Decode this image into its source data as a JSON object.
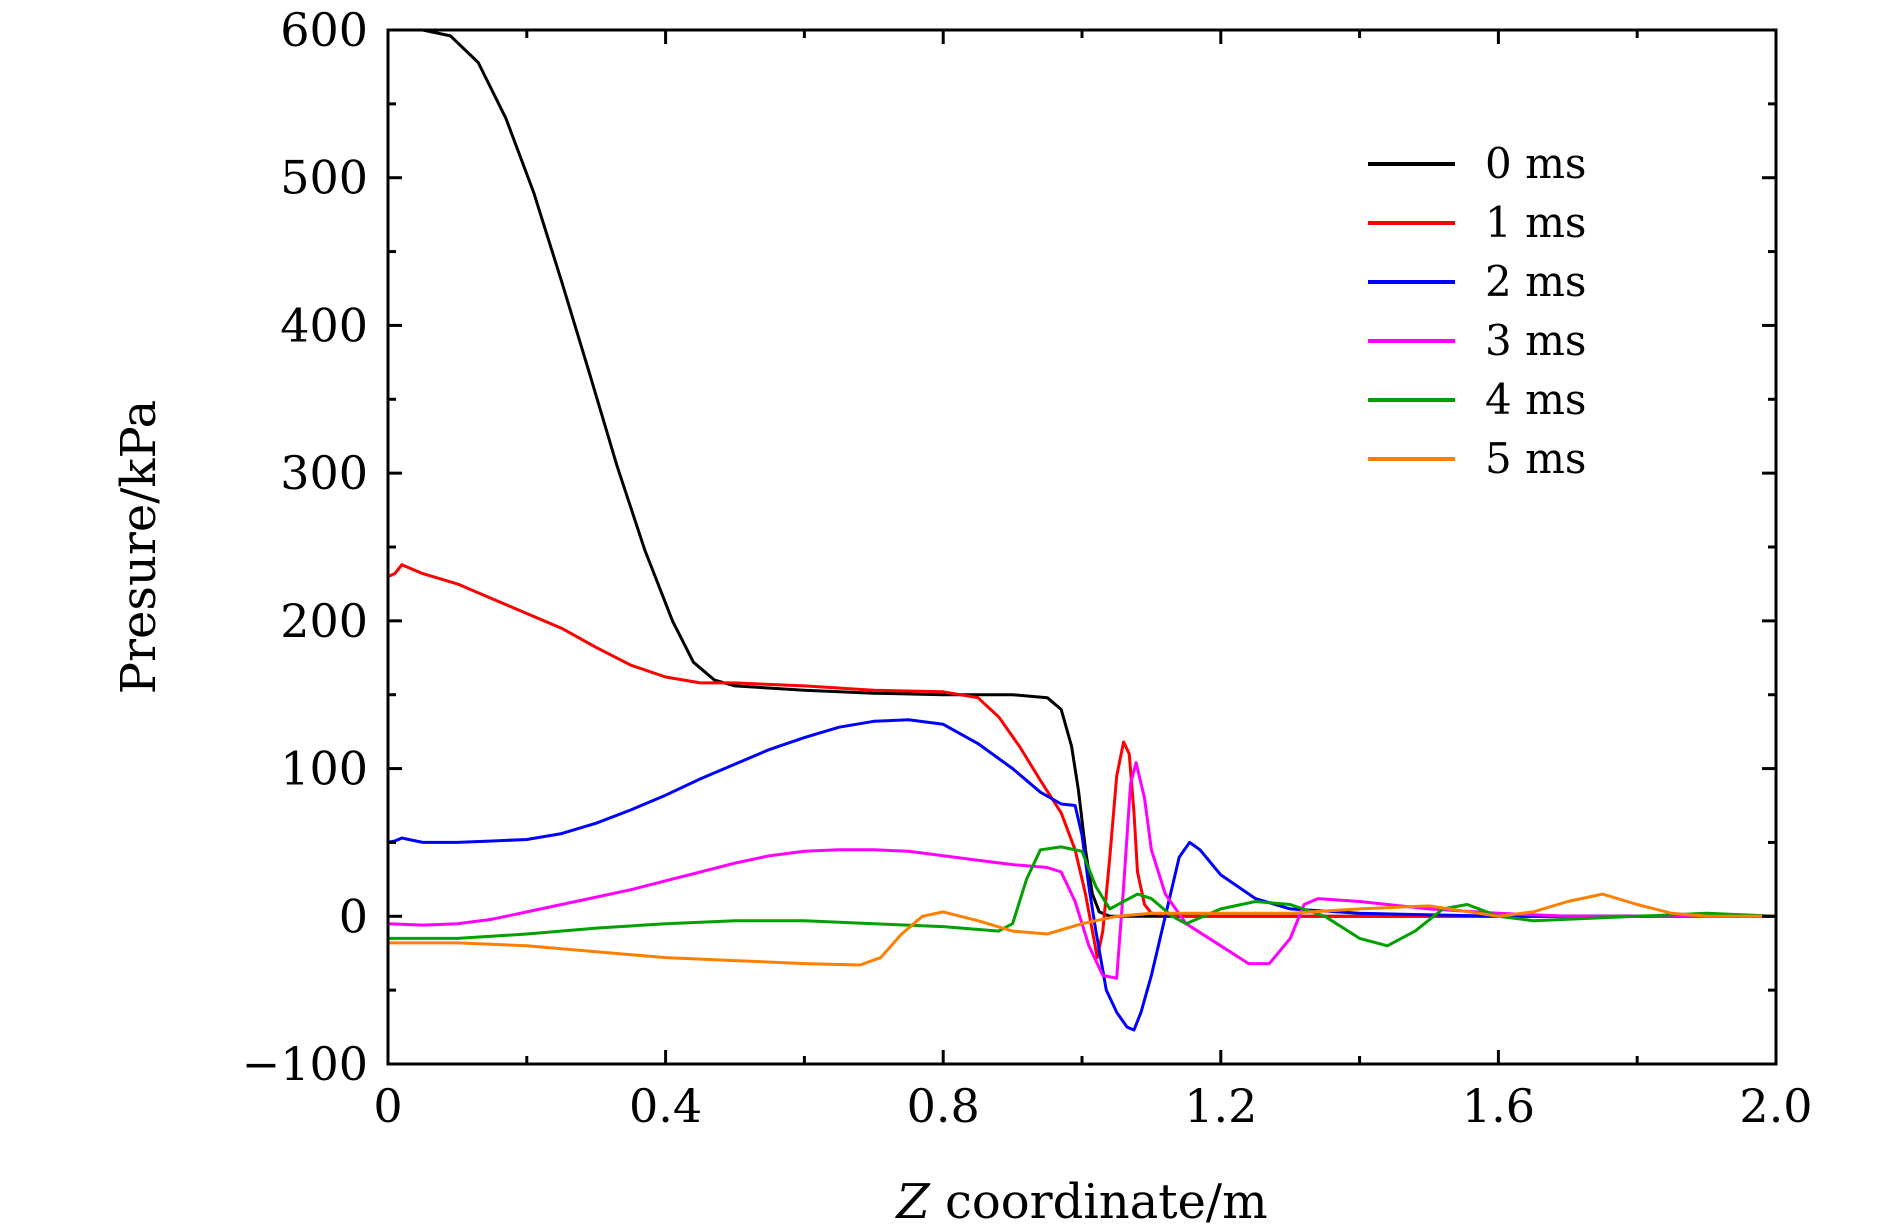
{
  "chart_data": {
    "type": "line",
    "xlabel_var": "Z",
    "xlabel_text": " coordinate/m",
    "ylabel": "Presure/kPa",
    "xlim": [
      0,
      2.0
    ],
    "ylim": [
      -100,
      600
    ],
    "x_ticks": [
      {
        "value": 0,
        "label": "0"
      },
      {
        "value": 0.4,
        "label": "0.4"
      },
      {
        "value": 0.8,
        "label": "0.8"
      },
      {
        "value": 1.2,
        "label": "1.2"
      },
      {
        "value": 1.6,
        "label": "1.6"
      },
      {
        "value": 2.0,
        "label": "2.0"
      }
    ],
    "x_minor_ticks": [
      0.2,
      0.6,
      1.0,
      1.4,
      1.8
    ],
    "y_ticks": [
      {
        "value": -100,
        "label": "−100"
      },
      {
        "value": 0,
        "label": "0"
      },
      {
        "value": 100,
        "label": "100"
      },
      {
        "value": 200,
        "label": "200"
      },
      {
        "value": 300,
        "label": "300"
      },
      {
        "value": 400,
        "label": "400"
      },
      {
        "value": 500,
        "label": "500"
      },
      {
        "value": 600,
        "label": "600"
      }
    ],
    "y_minor_ticks": [
      -50,
      50,
      150,
      250,
      350,
      450,
      550
    ],
    "grid": false,
    "legend_position": "top-right",
    "series": [
      {
        "name": "0 ms",
        "color": "#000000",
        "points": [
          [
            0,
            600
          ],
          [
            0.05,
            600
          ],
          [
            0.09,
            596
          ],
          [
            0.13,
            578
          ],
          [
            0.17,
            540
          ],
          [
            0.21,
            490
          ],
          [
            0.25,
            430
          ],
          [
            0.29,
            368
          ],
          [
            0.33,
            305
          ],
          [
            0.37,
            248
          ],
          [
            0.41,
            200
          ],
          [
            0.44,
            172
          ],
          [
            0.47,
            160
          ],
          [
            0.5,
            156
          ],
          [
            0.6,
            153
          ],
          [
            0.7,
            151
          ],
          [
            0.8,
            150
          ],
          [
            0.9,
            150
          ],
          [
            0.95,
            148
          ],
          [
            0.97,
            140
          ],
          [
            0.985,
            115
          ],
          [
            0.995,
            85
          ],
          [
            1.005,
            45
          ],
          [
            1.015,
            15
          ],
          [
            1.025,
            3
          ],
          [
            1.04,
            0
          ],
          [
            1.2,
            0
          ],
          [
            1.6,
            0
          ],
          [
            2.0,
            0
          ]
        ]
      },
      {
        "name": "1 ms",
        "color": "#ff0000",
        "points": [
          [
            0,
            230
          ],
          [
            0.01,
            232
          ],
          [
            0.02,
            238
          ],
          [
            0.03,
            236
          ],
          [
            0.05,
            232
          ],
          [
            0.1,
            225
          ],
          [
            0.15,
            215
          ],
          [
            0.2,
            205
          ],
          [
            0.25,
            195
          ],
          [
            0.3,
            182
          ],
          [
            0.35,
            170
          ],
          [
            0.4,
            162
          ],
          [
            0.45,
            158
          ],
          [
            0.5,
            158
          ],
          [
            0.6,
            156
          ],
          [
            0.7,
            153
          ],
          [
            0.8,
            152
          ],
          [
            0.85,
            148
          ],
          [
            0.88,
            135
          ],
          [
            0.91,
            115
          ],
          [
            0.94,
            92
          ],
          [
            0.97,
            70
          ],
          [
            0.99,
            45
          ],
          [
            1.005,
            15
          ],
          [
            1.015,
            -10
          ],
          [
            1.022,
            -28
          ],
          [
            1.03,
            -10
          ],
          [
            1.04,
            40
          ],
          [
            1.05,
            95
          ],
          [
            1.06,
            118
          ],
          [
            1.068,
            110
          ],
          [
            1.075,
            70
          ],
          [
            1.08,
            30
          ],
          [
            1.09,
            8
          ],
          [
            1.1,
            2
          ],
          [
            1.15,
            0
          ],
          [
            1.4,
            0
          ],
          [
            2.0,
            0
          ]
        ]
      },
      {
        "name": "2 ms",
        "color": "#0000ff",
        "points": [
          [
            0,
            50
          ],
          [
            0.01,
            51
          ],
          [
            0.02,
            53
          ],
          [
            0.03,
            52
          ],
          [
            0.05,
            50
          ],
          [
            0.1,
            50
          ],
          [
            0.15,
            51
          ],
          [
            0.2,
            52
          ],
          [
            0.25,
            56
          ],
          [
            0.3,
            63
          ],
          [
            0.35,
            72
          ],
          [
            0.4,
            82
          ],
          [
            0.45,
            93
          ],
          [
            0.5,
            103
          ],
          [
            0.55,
            113
          ],
          [
            0.6,
            121
          ],
          [
            0.65,
            128
          ],
          [
            0.7,
            132
          ],
          [
            0.75,
            133
          ],
          [
            0.8,
            130
          ],
          [
            0.85,
            117
          ],
          [
            0.9,
            100
          ],
          [
            0.94,
            84
          ],
          [
            0.97,
            76
          ],
          [
            0.99,
            75
          ],
          [
            1.0,
            55
          ],
          [
            1.01,
            20
          ],
          [
            1.02,
            -10
          ],
          [
            1.035,
            -50
          ],
          [
            1.05,
            -65
          ],
          [
            1.065,
            -75
          ],
          [
            1.075,
            -77
          ],
          [
            1.085,
            -65
          ],
          [
            1.1,
            -40
          ],
          [
            1.12,
            0
          ],
          [
            1.14,
            40
          ],
          [
            1.155,
            50
          ],
          [
            1.17,
            45
          ],
          [
            1.2,
            28
          ],
          [
            1.25,
            12
          ],
          [
            1.3,
            5
          ],
          [
            1.4,
            2
          ],
          [
            1.6,
            0
          ],
          [
            2.0,
            0
          ]
        ]
      },
      {
        "name": "3 ms",
        "color": "#ff00ff",
        "points": [
          [
            0,
            -5
          ],
          [
            0.05,
            -6
          ],
          [
            0.1,
            -5
          ],
          [
            0.15,
            -2
          ],
          [
            0.2,
            3
          ],
          [
            0.25,
            8
          ],
          [
            0.3,
            13
          ],
          [
            0.35,
            18
          ],
          [
            0.4,
            24
          ],
          [
            0.45,
            30
          ],
          [
            0.5,
            36
          ],
          [
            0.55,
            41
          ],
          [
            0.6,
            44
          ],
          [
            0.65,
            45
          ],
          [
            0.7,
            45
          ],
          [
            0.75,
            44
          ],
          [
            0.8,
            41
          ],
          [
            0.85,
            38
          ],
          [
            0.9,
            35
          ],
          [
            0.95,
            33
          ],
          [
            0.97,
            30
          ],
          [
            0.99,
            10
          ],
          [
            1.01,
            -20
          ],
          [
            1.03,
            -40
          ],
          [
            1.05,
            -42
          ],
          [
            1.06,
            20
          ],
          [
            1.07,
            90
          ],
          [
            1.078,
            104
          ],
          [
            1.09,
            80
          ],
          [
            1.1,
            45
          ],
          [
            1.12,
            15
          ],
          [
            1.15,
            -5
          ],
          [
            1.2,
            -20
          ],
          [
            1.24,
            -32
          ],
          [
            1.27,
            -32
          ],
          [
            1.3,
            -15
          ],
          [
            1.32,
            8
          ],
          [
            1.34,
            12
          ],
          [
            1.4,
            10
          ],
          [
            1.5,
            5
          ],
          [
            1.6,
            2
          ],
          [
            1.7,
            0
          ],
          [
            2.0,
            0
          ]
        ]
      },
      {
        "name": "4 ms",
        "color": "#00a000",
        "points": [
          [
            0,
            -15
          ],
          [
            0.1,
            -15
          ],
          [
            0.2,
            -12
          ],
          [
            0.3,
            -8
          ],
          [
            0.4,
            -5
          ],
          [
            0.5,
            -3
          ],
          [
            0.6,
            -3
          ],
          [
            0.7,
            -5
          ],
          [
            0.8,
            -7
          ],
          [
            0.88,
            -10
          ],
          [
            0.9,
            -5
          ],
          [
            0.92,
            25
          ],
          [
            0.94,
            45
          ],
          [
            0.97,
            47
          ],
          [
            1.0,
            44
          ],
          [
            1.02,
            20
          ],
          [
            1.04,
            5
          ],
          [
            1.06,
            10
          ],
          [
            1.08,
            15
          ],
          [
            1.1,
            12
          ],
          [
            1.13,
            0
          ],
          [
            1.15,
            -5
          ],
          [
            1.2,
            5
          ],
          [
            1.25,
            10
          ],
          [
            1.3,
            8
          ],
          [
            1.35,
            0
          ],
          [
            1.4,
            -15
          ],
          [
            1.44,
            -20
          ],
          [
            1.48,
            -10
          ],
          [
            1.52,
            5
          ],
          [
            1.555,
            8
          ],
          [
            1.6,
            0
          ],
          [
            1.65,
            -3
          ],
          [
            1.7,
            -2
          ],
          [
            1.8,
            0
          ],
          [
            1.9,
            2
          ],
          [
            2.0,
            0
          ]
        ]
      },
      {
        "name": "5 ms",
        "color": "#ff8000",
        "points": [
          [
            0,
            -18
          ],
          [
            0.1,
            -18
          ],
          [
            0.2,
            -20
          ],
          [
            0.3,
            -24
          ],
          [
            0.4,
            -28
          ],
          [
            0.5,
            -30
          ],
          [
            0.6,
            -32
          ],
          [
            0.68,
            -33
          ],
          [
            0.71,
            -28
          ],
          [
            0.74,
            -12
          ],
          [
            0.77,
            0
          ],
          [
            0.8,
            3
          ],
          [
            0.85,
            -3
          ],
          [
            0.9,
            -10
          ],
          [
            0.95,
            -12
          ],
          [
            1.0,
            -5
          ],
          [
            1.05,
            0
          ],
          [
            1.1,
            2
          ],
          [
            1.2,
            2
          ],
          [
            1.3,
            2
          ],
          [
            1.4,
            5
          ],
          [
            1.5,
            7
          ],
          [
            1.6,
            0
          ],
          [
            1.65,
            3
          ],
          [
            1.7,
            10
          ],
          [
            1.75,
            15
          ],
          [
            1.8,
            8
          ],
          [
            1.85,
            2
          ],
          [
            1.9,
            0
          ],
          [
            2.0,
            0
          ]
        ]
      }
    ]
  }
}
